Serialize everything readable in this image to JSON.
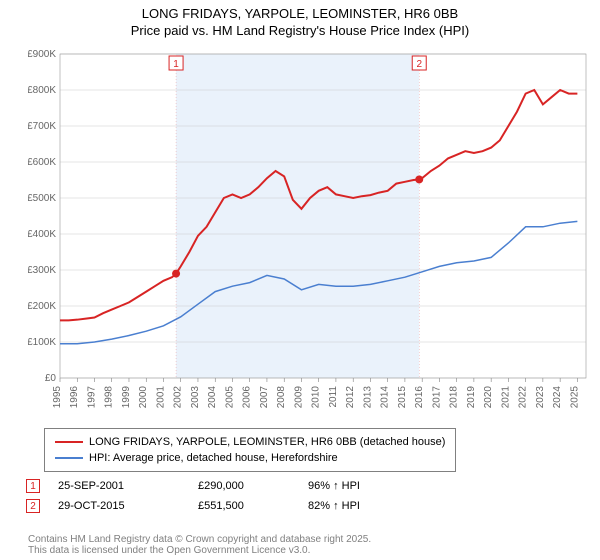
{
  "title": "LONG FRIDAYS, YARPOLE, LEOMINSTER, HR6 0BB",
  "subtitle": "Price paid vs. HM Land Registry's House Price Index (HPI)",
  "chart": {
    "type": "line",
    "background_color": "#ffffff",
    "plot_background": "#ffffff",
    "grid_color": "#cccccc",
    "highlight_band": {
      "x_start": 2001.73,
      "x_end": 2015.83,
      "color": "#eaf2fb"
    },
    "xlim": [
      1995,
      2025.5
    ],
    "ylim": [
      0,
      900000
    ],
    "ytick_step": 100000,
    "ytick_labels": [
      "£0",
      "£100K",
      "£200K",
      "£300K",
      "£400K",
      "£500K",
      "£600K",
      "£700K",
      "£800K",
      "£900K"
    ],
    "xticks": [
      1995,
      1996,
      1997,
      1998,
      1999,
      2000,
      2001,
      2002,
      2003,
      2004,
      2005,
      2006,
      2007,
      2008,
      2009,
      2010,
      2011,
      2012,
      2013,
      2014,
      2015,
      2016,
      2017,
      2018,
      2019,
      2020,
      2021,
      2022,
      2023,
      2024,
      2025
    ],
    "axis_fontsize": 10,
    "axis_color": "#666666",
    "series": [
      {
        "name": "price_paid",
        "label": "LONG FRIDAYS, YARPOLE, LEOMINSTER, HR6 0BB (detached house)",
        "color": "#d82424",
        "line_width": 2,
        "x": [
          1995,
          1995.5,
          1996,
          1996.5,
          1997,
          1997.5,
          1998,
          1998.5,
          1999,
          1999.5,
          2000,
          2000.5,
          2001,
          2001.5,
          2001.73,
          2002,
          2002.5,
          2003,
          2003.5,
          2004,
          2004.5,
          2005,
          2005.5,
          2006,
          2006.5,
          2007,
          2007.5,
          2008,
          2008.5,
          2009,
          2009.5,
          2010,
          2010.5,
          2011,
          2011.5,
          2012,
          2012.5,
          2013,
          2013.5,
          2014,
          2014.5,
          2015,
          2015.5,
          2015.83,
          2016,
          2016.5,
          2017,
          2017.5,
          2018,
          2018.5,
          2019,
          2019.5,
          2020,
          2020.5,
          2021,
          2021.5,
          2022,
          2022.5,
          2023,
          2023.5,
          2024,
          2024.5,
          2025
        ],
        "y": [
          160000,
          160000,
          162000,
          165000,
          168000,
          180000,
          190000,
          200000,
          210000,
          225000,
          240000,
          255000,
          270000,
          280000,
          290000,
          310000,
          350000,
          395000,
          420000,
          460000,
          500000,
          510000,
          500000,
          510000,
          530000,
          555000,
          575000,
          560000,
          495000,
          470000,
          500000,
          520000,
          530000,
          510000,
          505000,
          500000,
          505000,
          508000,
          515000,
          520000,
          540000,
          545000,
          550000,
          551500,
          555000,
          575000,
          590000,
          610000,
          620000,
          630000,
          625000,
          630000,
          640000,
          660000,
          700000,
          740000,
          790000,
          800000,
          760000,
          780000,
          800000,
          790000,
          790000
        ]
      },
      {
        "name": "hpi",
        "label": "HPI: Average price, detached house, Herefordshire",
        "color": "#4a7fd0",
        "line_width": 1.5,
        "x": [
          1995,
          1996,
          1997,
          1998,
          1999,
          2000,
          2001,
          2002,
          2003,
          2004,
          2005,
          2006,
          2007,
          2008,
          2009,
          2010,
          2011,
          2012,
          2013,
          2014,
          2015,
          2016,
          2017,
          2018,
          2019,
          2020,
          2021,
          2022,
          2023,
          2024,
          2025
        ],
        "y": [
          95000,
          95000,
          100000,
          108000,
          118000,
          130000,
          145000,
          170000,
          205000,
          240000,
          255000,
          265000,
          285000,
          275000,
          245000,
          260000,
          255000,
          255000,
          260000,
          270000,
          280000,
          295000,
          310000,
          320000,
          325000,
          335000,
          375000,
          420000,
          420000,
          430000,
          435000
        ]
      }
    ],
    "sale_markers": [
      {
        "n": 1,
        "x": 2001.73,
        "y": 290000,
        "color": "#d82424"
      },
      {
        "n": 2,
        "x": 2015.83,
        "y": 551500,
        "color": "#d82424"
      }
    ]
  },
  "legend": {
    "items": [
      {
        "color": "#d82424",
        "width": 2,
        "label": "LONG FRIDAYS, YARPOLE, LEOMINSTER, HR6 0BB (detached house)"
      },
      {
        "color": "#4a7fd0",
        "width": 1.5,
        "label": "HPI: Average price, detached house, Herefordshire"
      }
    ]
  },
  "sales": [
    {
      "n": "1",
      "color": "#d82424",
      "date": "25-SEP-2001",
      "price": "£290,000",
      "hpi": "96% ↑ HPI"
    },
    {
      "n": "2",
      "color": "#d82424",
      "date": "29-OCT-2015",
      "price": "£551,500",
      "hpi": "82% ↑ HPI"
    }
  ],
  "footer_line1": "Contains HM Land Registry data © Crown copyright and database right 2025.",
  "footer_line2": "This data is licensed under the Open Government Licence v3.0."
}
